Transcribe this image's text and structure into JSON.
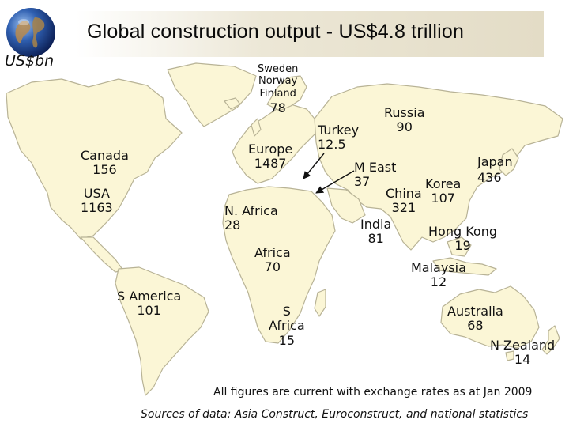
{
  "title": "Global construction output - US$4.8 trillion",
  "unit_label": "US$bn",
  "colors": {
    "land": "#fbf6d6",
    "land_outline": "#b8b396",
    "title_band": "#e3dcc6",
    "arrow": "#111111"
  },
  "icons": [
    "globe-icon"
  ],
  "regions": [
    {
      "id": "nordics",
      "name_lines": [
        "Sweden",
        "Norway",
        "Finland"
      ],
      "value": "78"
    },
    {
      "id": "russia",
      "name": "Russia",
      "value": "90"
    },
    {
      "id": "turkey",
      "name": "Turkey",
      "value": "12.5"
    },
    {
      "id": "europe",
      "name": "Europe",
      "value": "1487"
    },
    {
      "id": "canada",
      "name": "Canada",
      "value": "156"
    },
    {
      "id": "usa",
      "name": "USA",
      "value": "1163"
    },
    {
      "id": "japan",
      "name": "Japan",
      "value": "436"
    },
    {
      "id": "korea",
      "name": "Korea",
      "value": "107"
    },
    {
      "id": "mideast",
      "name": "M East",
      "value": "37"
    },
    {
      "id": "china",
      "name": "China",
      "value": "321"
    },
    {
      "id": "india",
      "name": "India",
      "value": "81"
    },
    {
      "id": "hongkong",
      "name": "Hong Kong",
      "value": "19"
    },
    {
      "id": "nafrica",
      "name": "N. Africa",
      "value": "28"
    },
    {
      "id": "africa",
      "name": "Africa",
      "value": "70"
    },
    {
      "id": "malaysia",
      "name": "Malaysia",
      "value": "12"
    },
    {
      "id": "samerica",
      "name": "S America",
      "value": "101"
    },
    {
      "id": "safrica",
      "name_lines": [
        "S",
        "Africa"
      ],
      "value": "15"
    },
    {
      "id": "australia",
      "name": "Australia",
      "value": "68"
    },
    {
      "id": "nzealand",
      "name": "N Zealand",
      "value": "14"
    }
  ],
  "footnote": "All figures are current with exchange rates as at Jan 2009",
  "sources": "Sources of data: Asia Construct, Euroconstruct, and national statistics"
}
